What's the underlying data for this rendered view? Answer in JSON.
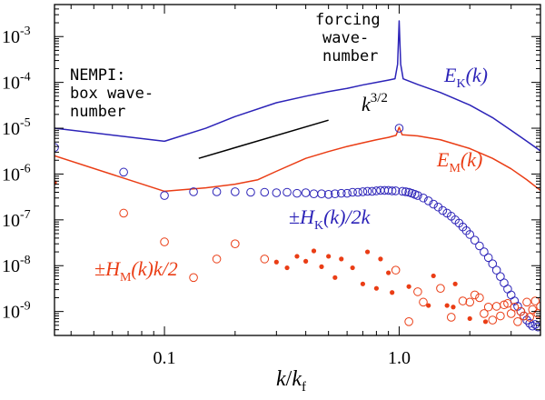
{
  "chart_data": {
    "type": "line",
    "scale": {
      "x": "log",
      "y": "log"
    },
    "xlabel": "k/kf",
    "xlim": [
      0.034,
      4.0
    ],
    "ylim": [
      3e-10,
      0.005
    ],
    "x_ticks": [
      {
        "value": 0.1,
        "label": "0.1"
      },
      {
        "value": 1.0,
        "label": "1.0"
      }
    ],
    "y_ticks": [
      {
        "value": 1e-09,
        "mantissa": "10",
        "exponent": "-9"
      },
      {
        "value": 1e-08,
        "mantissa": "10",
        "exponent": "-8"
      },
      {
        "value": 1e-07,
        "mantissa": "10",
        "exponent": "-7"
      },
      {
        "value": 1e-06,
        "mantissa": "10",
        "exponent": "-6"
      },
      {
        "value": 1e-05,
        "mantissa": "10",
        "exponent": "-5"
      },
      {
        "value": 0.0001,
        "mantissa": "10",
        "exponent": "-4"
      },
      {
        "value": 0.001,
        "mantissa": "10",
        "exponent": "-3"
      }
    ],
    "series": [
      {
        "name": "E_K(k)",
        "style": "line",
        "color": "#2c23b8",
        "points": [
          [
            0.034,
            1e-05
          ],
          [
            0.1,
            5.2e-06
          ],
          [
            0.15,
            1e-05
          ],
          [
            0.2,
            1.8e-05
          ],
          [
            0.3,
            3.6e-05
          ],
          [
            0.4,
            5e-05
          ],
          [
            0.5,
            6.3e-05
          ],
          [
            0.6,
            7.4e-05
          ],
          [
            0.7,
            8.8e-05
          ],
          [
            0.8,
            0.0001
          ],
          [
            0.9,
            0.000112
          ],
          [
            0.96,
            0.00012
          ],
          [
            0.985,
            0.00025
          ],
          [
            1.0,
            0.0022
          ],
          [
            1.015,
            0.00025
          ],
          [
            1.04,
            0.00012
          ],
          [
            1.2,
            9e-05
          ],
          [
            1.5,
            6e-05
          ],
          [
            2.0,
            3.2e-05
          ],
          [
            2.5,
            1.7e-05
          ],
          [
            3.0,
            9e-06
          ],
          [
            3.5,
            5.2e-06
          ],
          [
            4.0,
            3.2e-06
          ]
        ]
      },
      {
        "name": "E_M(k)",
        "style": "line",
        "color": "#ea3d15",
        "points": [
          [
            0.034,
            2.5e-06
          ],
          [
            0.1,
            4.2e-07
          ],
          [
            0.15,
            5e-07
          ],
          [
            0.2,
            6e-07
          ],
          [
            0.25,
            7.5e-07
          ],
          [
            0.3,
            1.15e-06
          ],
          [
            0.4,
            2.2e-06
          ],
          [
            0.5,
            3.1e-06
          ],
          [
            0.6,
            4e-06
          ],
          [
            0.7,
            4.8e-06
          ],
          [
            0.8,
            5.6e-06
          ],
          [
            0.9,
            6.3e-06
          ],
          [
            0.97,
            7e-06
          ],
          [
            1.0,
            1.05e-05
          ],
          [
            1.03,
            7.2e-06
          ],
          [
            1.2,
            6.8e-06
          ],
          [
            1.5,
            5.6e-06
          ],
          [
            2.0,
            3.6e-06
          ],
          [
            2.5,
            2.2e-06
          ],
          [
            3.0,
            1.3e-06
          ],
          [
            3.5,
            7.5e-07
          ],
          [
            4.0,
            4.4e-07
          ]
        ]
      },
      {
        "name": "±H_K(k)/2k",
        "style": "open-circle",
        "color": "#2c23b8",
        "points": [
          [
            0.034,
            3.8e-06
          ],
          [
            0.067,
            1.1e-06
          ],
          [
            0.1,
            3.4e-07
          ],
          [
            0.133,
            4.1e-07
          ],
          [
            0.167,
            4.1e-07
          ],
          [
            0.2,
            4.1e-07
          ],
          [
            0.233,
            4e-07
          ],
          [
            0.267,
            4e-07
          ],
          [
            0.3,
            3.9e-07
          ],
          [
            0.333,
            4e-07
          ],
          [
            0.367,
            3.8e-07
          ],
          [
            0.4,
            3.9e-07
          ],
          [
            0.433,
            3.7e-07
          ],
          [
            0.467,
            3.7e-07
          ],
          [
            0.5,
            3.6e-07
          ],
          [
            0.533,
            3.7e-07
          ],
          [
            0.567,
            3.8e-07
          ],
          [
            0.6,
            3.8e-07
          ],
          [
            0.633,
            4e-07
          ],
          [
            0.667,
            4e-07
          ],
          [
            0.7,
            4.1e-07
          ],
          [
            0.733,
            4.2e-07
          ],
          [
            0.767,
            4.2e-07
          ],
          [
            0.8,
            4.3e-07
          ],
          [
            0.833,
            4.4e-07
          ],
          [
            0.867,
            4.4e-07
          ],
          [
            0.9,
            4.4e-07
          ],
          [
            0.933,
            4.3e-07
          ],
          [
            0.967,
            4.3e-07
          ],
          [
            1.0,
            1e-05
          ],
          [
            1.033,
            4.2e-07
          ],
          [
            1.067,
            4.1e-07
          ],
          [
            1.1,
            4e-07
          ],
          [
            1.133,
            3.8e-07
          ],
          [
            1.167,
            3.6e-07
          ],
          [
            1.2,
            3.4e-07
          ],
          [
            1.267,
            3e-07
          ],
          [
            1.333,
            2.6e-07
          ],
          [
            1.4,
            2.2e-07
          ],
          [
            1.467,
            1.9e-07
          ],
          [
            1.533,
            1.6e-07
          ],
          [
            1.6,
            1.4e-07
          ],
          [
            1.667,
            1.2e-07
          ],
          [
            1.733,
            1e-07
          ],
          [
            1.8,
            8.5e-08
          ],
          [
            1.867,
            7e-08
          ],
          [
            1.933,
            5.8e-08
          ],
          [
            2.0,
            4.8e-08
          ],
          [
            2.1,
            3.6e-08
          ],
          [
            2.2,
            2.7e-08
          ],
          [
            2.3,
            2e-08
          ],
          [
            2.4,
            1.5e-08
          ],
          [
            2.5,
            1.1e-08
          ],
          [
            2.6,
            8e-09
          ],
          [
            2.7,
            5.8e-09
          ],
          [
            2.8,
            4.2e-09
          ],
          [
            2.9,
            3.1e-09
          ],
          [
            3.0,
            2.3e-09
          ],
          [
            3.1,
            1.7e-09
          ],
          [
            3.2,
            1.3e-09
          ],
          [
            3.3,
            1e-09
          ],
          [
            3.4,
            8e-10
          ],
          [
            3.5,
            6.5e-10
          ],
          [
            3.6,
            5.5e-10
          ],
          [
            3.7,
            4.8e-10
          ],
          [
            3.8,
            5.2e-10
          ],
          [
            3.9,
            4.6e-10
          ]
        ]
      },
      {
        "name": "±H_M(k)k/2 (positive)",
        "style": "filled-dot",
        "color": "#ea3d15",
        "points": [
          [
            0.034,
            6.5e-07
          ],
          [
            0.3,
            1.2e-08
          ],
          [
            0.333,
            9e-09
          ],
          [
            0.367,
            1.6e-08
          ],
          [
            0.4,
            1.25e-08
          ],
          [
            0.433,
            2.1e-08
          ],
          [
            0.467,
            9.5e-09
          ],
          [
            0.5,
            1.6e-08
          ],
          [
            0.533,
            5.5e-09
          ],
          [
            0.567,
            1.4e-08
          ],
          [
            0.633,
            9e-09
          ],
          [
            0.7,
            4e-09
          ],
          [
            0.733,
            2e-08
          ],
          [
            0.8,
            3.2e-09
          ],
          [
            0.833,
            1.4e-08
          ],
          [
            0.9,
            7e-09
          ],
          [
            0.933,
            2.6e-09
          ],
          [
            1.1,
            3.5e-09
          ],
          [
            1.333,
            1.35e-09
          ],
          [
            1.4,
            6e-09
          ],
          [
            1.6,
            1.35e-09
          ],
          [
            1.7,
            1.25e-09
          ],
          [
            1.733,
            4e-09
          ],
          [
            2.0,
            7e-10
          ],
          [
            2.333,
            6e-10
          ]
        ]
      },
      {
        "name": "±H_M(k)k/2 (negative)",
        "style": "open-circle",
        "color": "#ea3d15",
        "points": [
          [
            0.067,
            1.4e-07
          ],
          [
            0.1,
            3.3e-08
          ],
          [
            0.133,
            5.5e-09
          ],
          [
            0.167,
            1.4e-08
          ],
          [
            0.2,
            3e-08
          ],
          [
            0.267,
            1.4e-08
          ],
          [
            0.967,
            8e-09
          ],
          [
            1.1,
            6e-10
          ],
          [
            1.2,
            2.7e-09
          ],
          [
            1.267,
            1.6e-09
          ],
          [
            1.5,
            3.2e-09
          ],
          [
            1.667,
            7.5e-10
          ],
          [
            1.867,
            1.7e-09
          ],
          [
            2.0,
            1.6e-09
          ],
          [
            2.1,
            2.3e-09
          ],
          [
            2.2,
            2e-09
          ],
          [
            2.3,
            9e-10
          ],
          [
            2.4,
            1.25e-09
          ],
          [
            2.5,
            6.5e-10
          ],
          [
            2.6,
            1.3e-09
          ],
          [
            2.7,
            8e-10
          ],
          [
            2.8,
            1.4e-09
          ],
          [
            2.9,
            1.5e-09
          ],
          [
            3.0,
            9e-10
          ],
          [
            3.1,
            1.25e-09
          ],
          [
            3.2,
            6e-10
          ],
          [
            3.3,
            1e-09
          ],
          [
            3.4,
            8e-10
          ],
          [
            3.5,
            1.6e-09
          ],
          [
            3.6,
            7.5e-10
          ],
          [
            3.7,
            1.1e-09
          ],
          [
            3.8,
            1.7e-09
          ],
          [
            3.9,
            9e-10
          ],
          [
            4.0,
            1.3e-09
          ]
        ]
      },
      {
        "name": "k^{3/2} reference slope",
        "style": "line",
        "color": "#000000",
        "points": [
          [
            0.14,
            2.2e-06
          ],
          [
            0.5,
            1.5e-05
          ]
        ]
      }
    ],
    "annotations": {
      "forcing": {
        "line1": "forcing",
        "line2": "wave-",
        "line3": "number"
      },
      "nempi": {
        "line1": "NEMPI:",
        "line2": "box wave-",
        "line3": "number"
      },
      "slope": {
        "base": "k",
        "exponent": "3/2"
      },
      "ek": {
        "main": "E",
        "sub": "K",
        "arg": "(k)"
      },
      "em": {
        "main": "E",
        "sub": "M",
        "arg": "(k)"
      },
      "hk": {
        "pm": "±",
        "main": "H",
        "sub": "K",
        "arg": "(k)/2k"
      },
      "hm": {
        "pm": "±",
        "main": "H",
        "sub": "M",
        "arg": "(k)k/2"
      },
      "xlabel": {
        "num": "k",
        "slash": "/",
        "den": "k",
        "sub": "f"
      }
    }
  }
}
